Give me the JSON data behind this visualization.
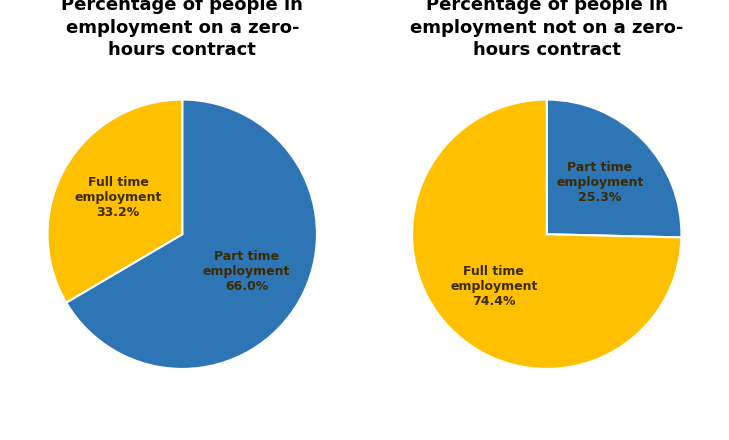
{
  "chart1": {
    "title": "Percentage of people in\nemployment on a zero-\nhours contract",
    "slices": [
      66.0,
      33.2
    ],
    "labels": [
      "Part time\nemployment\n66.0%",
      "Full time\nemployment\n33.2%"
    ],
    "colors": [
      "#2E75B6",
      "#FFC000"
    ],
    "startangle": 90,
    "label_distances": [
      0.55,
      0.55
    ]
  },
  "chart2": {
    "title": "Percentage of people in\nemployment not on a zero-\nhours contract",
    "slices": [
      25.3,
      74.4
    ],
    "labels": [
      "Part time\nemployment\n25.3%",
      "Full time\nemployment\n74.4%"
    ],
    "colors": [
      "#2E75B6",
      "#FFC000"
    ],
    "startangle": 90,
    "label_distances": [
      0.6,
      0.55
    ]
  },
  "label_color": "#3D2B00",
  "title_fontsize": 13,
  "label_fontsize": 9,
  "background_color": "#FFFFFF"
}
